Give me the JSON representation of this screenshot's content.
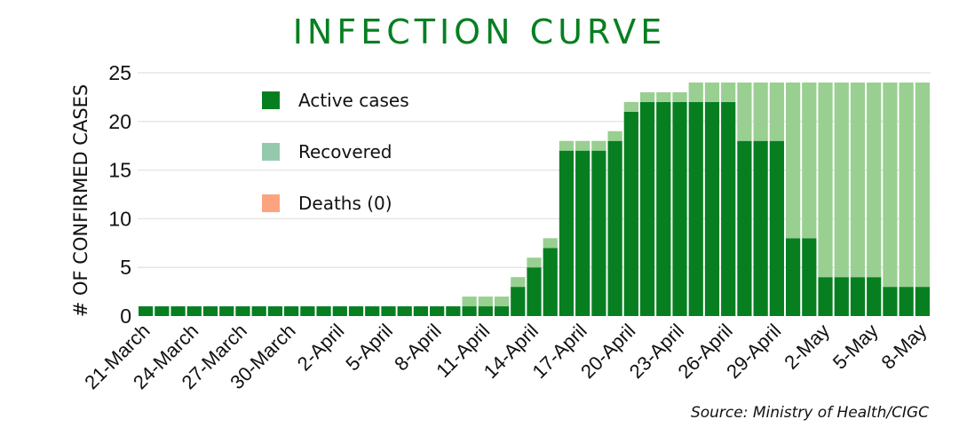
{
  "chart_data": {
    "type": "bar",
    "stacked": true,
    "title": "INFECTION CURVE",
    "xlabel": "",
    "ylabel": "# OF CONFIRMED CASES",
    "ylim": [
      0,
      25
    ],
    "yticks": [
      0,
      5,
      10,
      15,
      20,
      25
    ],
    "grid": true,
    "legend_position": "top-left",
    "source": "Source: Ministry of Health/CIGC",
    "categories": [
      "21-March",
      "22-March",
      "23-March",
      "24-March",
      "25-March",
      "26-March",
      "27-March",
      "28-March",
      "29-March",
      "30-March",
      "31-March",
      "1-April",
      "2-April",
      "3-April",
      "4-April",
      "5-April",
      "6-April",
      "7-April",
      "8-April",
      "9-April",
      "10-April",
      "11-April",
      "12-April",
      "13-April",
      "14-April",
      "15-April",
      "16-April",
      "17-April",
      "18-April",
      "19-April",
      "20-April",
      "21-April",
      "22-April",
      "23-April",
      "24-April",
      "25-April",
      "26-April",
      "27-April",
      "28-April",
      "29-April",
      "30-April",
      "1-May",
      "2-May",
      "3-May",
      "4-May",
      "5-May",
      "6-May",
      "7-May",
      "8-May"
    ],
    "xtick_labels": [
      "21-March",
      "24-March",
      "27-March",
      "30-March",
      "2-April",
      "5-April",
      "8-April",
      "11-April",
      "14-April",
      "17-April",
      "20-April",
      "23-April",
      "26-April",
      "29-April",
      "2-May",
      "5-May",
      "8-May"
    ],
    "series": [
      {
        "name": "Active cases",
        "color": "#077F21",
        "legend_color": "#077F21",
        "values": [
          1,
          1,
          1,
          1,
          1,
          1,
          1,
          1,
          1,
          1,
          1,
          1,
          1,
          1,
          1,
          1,
          1,
          1,
          1,
          1,
          1,
          1,
          1,
          3,
          5,
          7,
          17,
          17,
          17,
          18,
          21,
          22,
          22,
          22,
          22,
          22,
          22,
          18,
          18,
          18,
          8,
          8,
          4,
          4,
          4,
          4,
          3,
          3,
          3
        ]
      },
      {
        "name": "Recovered",
        "color": "#99CF91",
        "legend_color": "#95C9AE",
        "values": [
          0,
          0,
          0,
          0,
          0,
          0,
          0,
          0,
          0,
          0,
          0,
          0,
          0,
          0,
          0,
          0,
          0,
          0,
          0,
          0,
          1,
          1,
          1,
          1,
          1,
          1,
          1,
          1,
          1,
          1,
          1,
          1,
          1,
          1,
          2,
          2,
          2,
          6,
          6,
          6,
          16,
          16,
          20,
          20,
          20,
          20,
          21,
          21,
          21
        ]
      },
      {
        "name": "Deaths (0)",
        "color": "#FCA47F",
        "legend_color": "#FCA47F",
        "values": [
          0,
          0,
          0,
          0,
          0,
          0,
          0,
          0,
          0,
          0,
          0,
          0,
          0,
          0,
          0,
          0,
          0,
          0,
          0,
          0,
          0,
          0,
          0,
          0,
          0,
          0,
          0,
          0,
          0,
          0,
          0,
          0,
          0,
          0,
          0,
          0,
          0,
          0,
          0,
          0,
          0,
          0,
          0,
          0,
          0,
          0,
          0,
          0,
          0
        ]
      }
    ]
  }
}
